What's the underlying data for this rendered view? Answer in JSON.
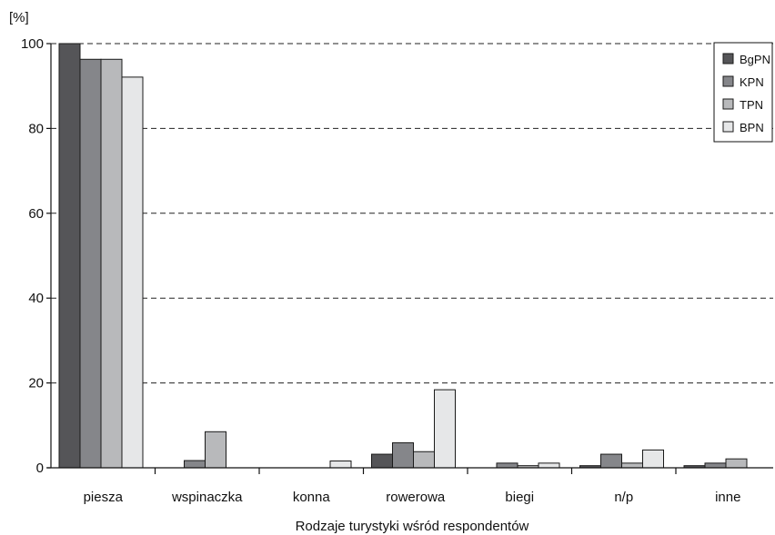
{
  "chart_data": {
    "type": "bar",
    "title": "",
    "xlabel": "Rodzaje turystyki wśród respondentów",
    "ylabel": "[%]",
    "ylim": [
      0,
      100
    ],
    "yticks": [
      "0",
      "20",
      "40",
      "60",
      "80",
      "100"
    ],
    "grid": "horizontal dashed",
    "legend_position": "top-right",
    "categories": [
      "piesza",
      "wspinaczka",
      "konna",
      "rowerowa",
      "biegi",
      "n/p",
      "inne"
    ],
    "series": [
      {
        "name": "BgPN",
        "color": "#555558",
        "values": [
          100,
          0,
          0,
          3.2,
          0,
          0.5,
          0.5
        ]
      },
      {
        "name": "KPN",
        "color": "#85868a",
        "values": [
          96.3,
          1.7,
          0,
          5.9,
          1.1,
          3.2,
          1.1
        ]
      },
      {
        "name": "TPN",
        "color": "#b8b9bb",
        "values": [
          96.3,
          8.5,
          0,
          3.8,
          0.5,
          1.1,
          2.1
        ]
      },
      {
        "name": "BPN",
        "color": "#e6e7e8",
        "values": [
          92.1,
          0,
          1.6,
          18.4,
          1.1,
          4.2,
          0
        ]
      }
    ]
  }
}
